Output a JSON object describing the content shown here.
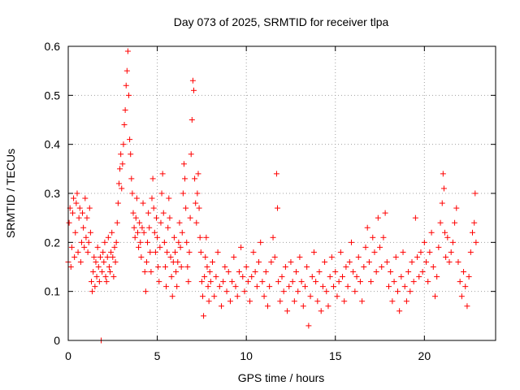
{
  "chart_data": {
    "type": "scatter",
    "title": "Day 073 of 2025, SRMTID for receiver tlpa",
    "xlabel": "GPS time / hours",
    "ylabel": "SRMTID / TECUs",
    "xlim": [
      0,
      24
    ],
    "ylim": [
      0,
      0.6
    ],
    "xticks": [
      0,
      5,
      10,
      15,
      20
    ],
    "xtick_labels": [
      "0",
      "5",
      "10",
      "15",
      "20"
    ],
    "yticks": [
      0,
      0.1,
      0.2,
      0.3,
      0.4,
      0.5,
      0.6
    ],
    "ytick_labels": [
      "0",
      "0.1",
      "0.2",
      "0.3",
      "0.4",
      "0.5",
      "0.6"
    ],
    "grid": true,
    "marker": "plus",
    "color": "#ff0000",
    "series": [
      {
        "name": "SRMTID",
        "points": [
          [
            0.0,
            0.16
          ],
          [
            0.05,
            0.24
          ],
          [
            0.1,
            0.27
          ],
          [
            0.15,
            0.15
          ],
          [
            0.2,
            0.19
          ],
          [
            0.25,
            0.26
          ],
          [
            0.3,
            0.29
          ],
          [
            0.35,
            0.17
          ],
          [
            0.4,
            0.22
          ],
          [
            0.45,
            0.28
          ],
          [
            0.5,
            0.3
          ],
          [
            0.55,
            0.18
          ],
          [
            0.6,
            0.25
          ],
          [
            0.65,
            0.27
          ],
          [
            0.7,
            0.16
          ],
          [
            0.75,
            0.2
          ],
          [
            0.8,
            0.26
          ],
          [
            0.85,
            0.23
          ],
          [
            0.9,
            0.19
          ],
          [
            0.95,
            0.29
          ],
          [
            1.0,
            0.21
          ],
          [
            1.05,
            0.25
          ],
          [
            1.1,
            0.18
          ],
          [
            1.15,
            0.2
          ],
          [
            1.2,
            0.27
          ],
          [
            1.25,
            0.22
          ],
          [
            1.3,
            0.12
          ],
          [
            1.35,
            0.1
          ],
          [
            1.4,
            0.14
          ],
          [
            1.45,
            0.17
          ],
          [
            1.5,
            0.11
          ],
          [
            1.55,
            0.16
          ],
          [
            1.6,
            0.13
          ],
          [
            1.65,
            0.19
          ],
          [
            1.7,
            0.15
          ],
          [
            1.75,
            0.12
          ],
          [
            1.8,
            0.17
          ],
          [
            1.85,
            0.0
          ],
          [
            1.9,
            0.14
          ],
          [
            1.95,
            0.18
          ],
          [
            2.0,
            0.16
          ],
          [
            2.05,
            0.2
          ],
          [
            2.1,
            0.13
          ],
          [
            2.15,
            0.12
          ],
          [
            2.2,
            0.17
          ],
          [
            2.25,
            0.21
          ],
          [
            2.3,
            0.15
          ],
          [
            2.35,
            0.14
          ],
          [
            2.4,
            0.18
          ],
          [
            2.45,
            0.22
          ],
          [
            2.5,
            0.17
          ],
          [
            2.55,
            0.13
          ],
          [
            2.6,
            0.19
          ],
          [
            2.65,
            0.16
          ],
          [
            2.7,
            0.2
          ],
          [
            2.75,
            0.24
          ],
          [
            2.8,
            0.28
          ],
          [
            2.85,
            0.32
          ],
          [
            2.9,
            0.35
          ],
          [
            2.95,
            0.38
          ],
          [
            3.0,
            0.31
          ],
          [
            3.05,
            0.36
          ],
          [
            3.1,
            0.4
          ],
          [
            3.15,
            0.44
          ],
          [
            3.2,
            0.47
          ],
          [
            3.25,
            0.52
          ],
          [
            3.3,
            0.55
          ],
          [
            3.35,
            0.59
          ],
          [
            3.4,
            0.5
          ],
          [
            3.45,
            0.41
          ],
          [
            3.5,
            0.38
          ],
          [
            3.55,
            0.33
          ],
          [
            3.6,
            0.3
          ],
          [
            3.65,
            0.26
          ],
          [
            3.7,
            0.23
          ],
          [
            3.75,
            0.21
          ],
          [
            3.8,
            0.25
          ],
          [
            3.85,
            0.29
          ],
          [
            3.9,
            0.22
          ],
          [
            3.95,
            0.19
          ],
          [
            4.0,
            0.24
          ],
          [
            4.05,
            0.2
          ],
          [
            4.1,
            0.17
          ],
          [
            4.15,
            0.23
          ],
          [
            4.2,
            0.28
          ],
          [
            4.25,
            0.22
          ],
          [
            4.3,
            0.14
          ],
          [
            4.35,
            0.1
          ],
          [
            4.4,
            0.16
          ],
          [
            4.45,
            0.2
          ],
          [
            4.5,
            0.26
          ],
          [
            4.55,
            0.23
          ],
          [
            4.6,
            0.18
          ],
          [
            4.65,
            0.14
          ],
          [
            4.7,
            0.29
          ],
          [
            4.75,
            0.33
          ],
          [
            4.8,
            0.27
          ],
          [
            4.85,
            0.22
          ],
          [
            4.9,
            0.18
          ],
          [
            4.95,
            0.25
          ],
          [
            5.0,
            0.21
          ],
          [
            5.05,
            0.15
          ],
          [
            5.1,
            0.12
          ],
          [
            5.15,
            0.19
          ],
          [
            5.2,
            0.24
          ],
          [
            5.25,
            0.3
          ],
          [
            5.3,
            0.34
          ],
          [
            5.35,
            0.26
          ],
          [
            5.4,
            0.2
          ],
          [
            5.45,
            0.15
          ],
          [
            5.5,
            0.11
          ],
          [
            5.55,
            0.18
          ],
          [
            5.6,
            0.23
          ],
          [
            5.65,
            0.29
          ],
          [
            5.7,
            0.25
          ],
          [
            5.75,
            0.17
          ],
          [
            5.8,
            0.13
          ],
          [
            5.85,
            0.09
          ],
          [
            5.9,
            0.16
          ],
          [
            5.95,
            0.21
          ],
          [
            6.0,
            0.18
          ],
          [
            6.05,
            0.14
          ],
          [
            6.1,
            0.11
          ],
          [
            6.15,
            0.16
          ],
          [
            6.2,
            0.2
          ],
          [
            6.25,
            0.24
          ],
          [
            6.3,
            0.19
          ],
          [
            6.35,
            0.15
          ],
          [
            6.4,
            0.22
          ],
          [
            6.45,
            0.3
          ],
          [
            6.5,
            0.36
          ],
          [
            6.55,
            0.33
          ],
          [
            6.6,
            0.27
          ],
          [
            6.65,
            0.2
          ],
          [
            6.7,
            0.15
          ],
          [
            6.75,
            0.12
          ],
          [
            6.8,
            0.18
          ],
          [
            6.85,
            0.25
          ],
          [
            6.9,
            0.38
          ],
          [
            6.95,
            0.45
          ],
          [
            7.0,
            0.53
          ],
          [
            7.05,
            0.51
          ],
          [
            7.1,
            0.33
          ],
          [
            7.15,
            0.28
          ],
          [
            7.2,
            0.24
          ],
          [
            7.25,
            0.3
          ],
          [
            7.3,
            0.34
          ],
          [
            7.35,
            0.27
          ],
          [
            7.4,
            0.21
          ],
          [
            7.45,
            0.18
          ],
          [
            7.5,
            0.12
          ],
          [
            7.55,
            0.09
          ],
          [
            7.6,
            0.05
          ],
          [
            7.65,
            0.13
          ],
          [
            7.7,
            0.17
          ],
          [
            7.75,
            0.21
          ],
          [
            7.8,
            0.15
          ],
          [
            7.85,
            0.11
          ],
          [
            7.9,
            0.08
          ],
          [
            7.95,
            0.14
          ],
          [
            8.0,
            0.12
          ],
          [
            8.1,
            0.16
          ],
          [
            8.2,
            0.09
          ],
          [
            8.3,
            0.13
          ],
          [
            8.4,
            0.18
          ],
          [
            8.5,
            0.11
          ],
          [
            8.6,
            0.07
          ],
          [
            8.7,
            0.12
          ],
          [
            8.8,
            0.15
          ],
          [
            8.9,
            0.1
          ],
          [
            9.0,
            0.14
          ],
          [
            9.1,
            0.08
          ],
          [
            9.2,
            0.12
          ],
          [
            9.3,
            0.17
          ],
          [
            9.4,
            0.11
          ],
          [
            9.5,
            0.09
          ],
          [
            9.6,
            0.14
          ],
          [
            9.7,
            0.19
          ],
          [
            9.8,
            0.13
          ],
          [
            9.9,
            0.1
          ],
          [
            10.0,
            0.15
          ],
          [
            10.1,
            0.12
          ],
          [
            10.2,
            0.08
          ],
          [
            10.3,
            0.13
          ],
          [
            10.4,
            0.18
          ],
          [
            10.5,
            0.14
          ],
          [
            10.6,
            0.11
          ],
          [
            10.7,
            0.16
          ],
          [
            10.8,
            0.2
          ],
          [
            10.9,
            0.12
          ],
          [
            11.0,
            0.09
          ],
          [
            11.1,
            0.14
          ],
          [
            11.2,
            0.07
          ],
          [
            11.3,
            0.11
          ],
          [
            11.4,
            0.16
          ],
          [
            11.5,
            0.21
          ],
          [
            11.6,
            0.17
          ],
          [
            11.7,
            0.34
          ],
          [
            11.75,
            0.27
          ],
          [
            11.8,
            0.12
          ],
          [
            11.9,
            0.08
          ],
          [
            12.0,
            0.13
          ],
          [
            12.1,
            0.1
          ],
          [
            12.2,
            0.15
          ],
          [
            12.3,
            0.06
          ],
          [
            12.4,
            0.11
          ],
          [
            12.5,
            0.16
          ],
          [
            12.6,
            0.12
          ],
          [
            12.7,
            0.08
          ],
          [
            12.8,
            0.14
          ],
          [
            12.9,
            0.1
          ],
          [
            13.0,
            0.17
          ],
          [
            13.1,
            0.12
          ],
          [
            13.2,
            0.07
          ],
          [
            13.3,
            0.11
          ],
          [
            13.4,
            0.15
          ],
          [
            13.5,
            0.03
          ],
          [
            13.6,
            0.09
          ],
          [
            13.7,
            0.13
          ],
          [
            13.8,
            0.18
          ],
          [
            13.9,
            0.12
          ],
          [
            14.0,
            0.08
          ],
          [
            14.1,
            0.14
          ],
          [
            14.2,
            0.06
          ],
          [
            14.3,
            0.11
          ],
          [
            14.4,
            0.16
          ],
          [
            14.5,
            0.1
          ],
          [
            14.6,
            0.07
          ],
          [
            14.7,
            0.13
          ],
          [
            14.8,
            0.17
          ],
          [
            14.9,
            0.11
          ],
          [
            15.0,
            0.14
          ],
          [
            15.1,
            0.09
          ],
          [
            15.2,
            0.12
          ],
          [
            15.3,
            0.18
          ],
          [
            15.4,
            0.13
          ],
          [
            15.5,
            0.08
          ],
          [
            15.6,
            0.15
          ],
          [
            15.7,
            0.11
          ],
          [
            15.8,
            0.16
          ],
          [
            15.9,
            0.2
          ],
          [
            16.0,
            0.14
          ],
          [
            16.1,
            0.1
          ],
          [
            16.2,
            0.13
          ],
          [
            16.3,
            0.17
          ],
          [
            16.4,
            0.12
          ],
          [
            16.5,
            0.08
          ],
          [
            16.6,
            0.15
          ],
          [
            16.7,
            0.19
          ],
          [
            16.8,
            0.23
          ],
          [
            16.9,
            0.16
          ],
          [
            17.0,
            0.12
          ],
          [
            17.1,
            0.21
          ],
          [
            17.2,
            0.18
          ],
          [
            17.3,
            0.14
          ],
          [
            17.4,
            0.25
          ],
          [
            17.5,
            0.19
          ],
          [
            17.6,
            0.15
          ],
          [
            17.7,
            0.21
          ],
          [
            17.8,
            0.26
          ],
          [
            17.9,
            0.16
          ],
          [
            18.0,
            0.11
          ],
          [
            18.1,
            0.14
          ],
          [
            18.2,
            0.08
          ],
          [
            18.3,
            0.12
          ],
          [
            18.4,
            0.17
          ],
          [
            18.5,
            0.1
          ],
          [
            18.6,
            0.06
          ],
          [
            18.7,
            0.13
          ],
          [
            18.8,
            0.18
          ],
          [
            18.9,
            0.11
          ],
          [
            19.0,
            0.08
          ],
          [
            19.1,
            0.14
          ],
          [
            19.2,
            0.1
          ],
          [
            19.3,
            0.16
          ],
          [
            19.4,
            0.12
          ],
          [
            19.5,
            0.25
          ],
          [
            19.6,
            0.17
          ],
          [
            19.7,
            0.13
          ],
          [
            19.8,
            0.18
          ],
          [
            19.9,
            0.14
          ],
          [
            20.0,
            0.2
          ],
          [
            20.1,
            0.16
          ],
          [
            20.2,
            0.12
          ],
          [
            20.3,
            0.18
          ],
          [
            20.4,
            0.22
          ],
          [
            20.5,
            0.15
          ],
          [
            20.6,
            0.09
          ],
          [
            20.7,
            0.13
          ],
          [
            20.8,
            0.19
          ],
          [
            20.9,
            0.24
          ],
          [
            21.0,
            0.28
          ],
          [
            21.05,
            0.34
          ],
          [
            21.1,
            0.31
          ],
          [
            21.15,
            0.22
          ],
          [
            21.2,
            0.17
          ],
          [
            21.3,
            0.21
          ],
          [
            21.4,
            0.16
          ],
          [
            21.5,
            0.18
          ],
          [
            21.6,
            0.2
          ],
          [
            21.7,
            0.24
          ],
          [
            21.8,
            0.27
          ],
          [
            21.9,
            0.16
          ],
          [
            22.0,
            0.12
          ],
          [
            22.1,
            0.09
          ],
          [
            22.2,
            0.14
          ],
          [
            22.3,
            0.11
          ],
          [
            22.4,
            0.07
          ],
          [
            22.5,
            0.13
          ],
          [
            22.6,
            0.18
          ],
          [
            22.7,
            0.22
          ],
          [
            22.8,
            0.24
          ],
          [
            22.85,
            0.3
          ],
          [
            22.9,
            0.2
          ]
        ]
      }
    ]
  }
}
